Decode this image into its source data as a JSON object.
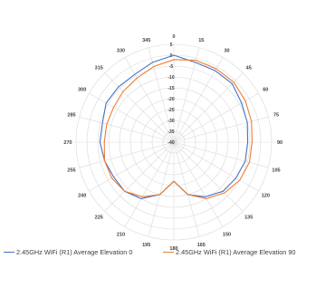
{
  "chart_data": {
    "type": "polar-line",
    "radial_axis": {
      "min": -40,
      "max": 5,
      "step": 5
    },
    "radial_ticks": [
      "5",
      "0",
      "-5",
      "-10",
      "-15",
      "-20",
      "-25",
      "-30",
      "-35",
      "-40"
    ],
    "angle_labels": [
      "0",
      "15",
      "30",
      "45",
      "60",
      "75",
      "90",
      "105",
      "120",
      "135",
      "150",
      "165",
      "180",
      "195",
      "210",
      "225",
      "240",
      "255",
      "270",
      "285",
      "300",
      "315",
      "330",
      "345"
    ],
    "theta": [
      0,
      15,
      30,
      45,
      60,
      75,
      90,
      105,
      120,
      135,
      150,
      165,
      180,
      195,
      210,
      225,
      240,
      255,
      270,
      285,
      300,
      315,
      330,
      345
    ],
    "grid": true,
    "legend_position": "bottom",
    "series": [
      {
        "name": "2.45GHz WiFi (R1) Average Elevation 0",
        "color": "#4472C4",
        "values": [
          0,
          -2,
          -2,
          -2,
          -4,
          -5,
          -6,
          -6,
          -7,
          -8,
          -11,
          -15,
          -22,
          -15,
          -10,
          -8,
          -8,
          -7,
          -6,
          -6,
          -4,
          -4,
          -4,
          -2
        ]
      },
      {
        "name": "2.45GHz WiFi (R1) Average Elevation 90",
        "color": "#ED7D31",
        "values": [
          -2,
          -1,
          -1,
          -1,
          -2,
          -3,
          -4,
          -4,
          -5,
          -7,
          -10,
          -15,
          -22,
          -15,
          -11,
          -8,
          -7,
          -7,
          -8,
          -8,
          -8,
          -7,
          -6,
          -4
        ]
      }
    ]
  }
}
